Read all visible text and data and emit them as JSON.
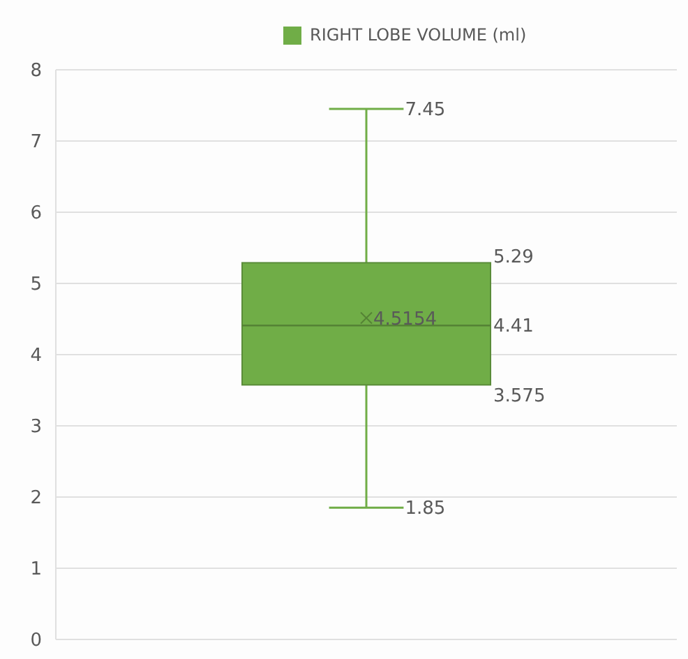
{
  "chart_data": {
    "type": "box",
    "categories": [
      null
    ],
    "series": [
      {
        "name": "RIGHT LOBE VOLUME (ml)",
        "color": "#70ad47",
        "boxes": [
          {
            "low": 1.85,
            "q1": 3.575,
            "median": 4.41,
            "q3": 5.29,
            "high": 7.45,
            "mean": 4.5154
          }
        ]
      }
    ],
    "annotations": [
      "7.45",
      "5.29",
      "4.5154",
      "4.41",
      "3.575",
      "1.85"
    ],
    "data_labels": true,
    "ylim": [
      0,
      8
    ],
    "yticks": [
      0,
      1,
      2,
      3,
      4,
      5,
      6,
      7,
      8
    ],
    "grid": "y",
    "legend": "top"
  }
}
